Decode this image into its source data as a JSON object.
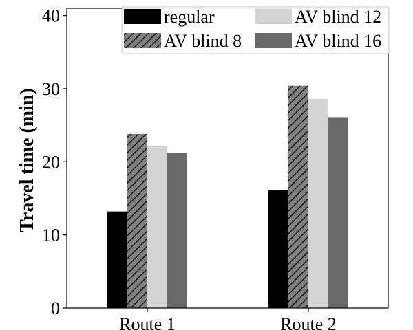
{
  "chart_data": {
    "type": "bar",
    "categories": [
      "Route 1",
      "Route 2"
    ],
    "series": [
      {
        "name": "regular",
        "values": [
          13.2,
          16.1
        ],
        "color": "#000000",
        "pattern": "solid"
      },
      {
        "name": "AV blind 8",
        "values": [
          23.8,
          30.4
        ],
        "color": "#808080",
        "pattern": "hatch"
      },
      {
        "name": "AV blind 12",
        "values": [
          22.1,
          28.6
        ],
        "color": "#d3d3d3",
        "pattern": "solid"
      },
      {
        "name": "AV blind 16",
        "values": [
          21.2,
          26.1
        ],
        "color": "#696969",
        "pattern": "solid"
      }
    ],
    "title": "",
    "xlabel": "",
    "ylabel": "Travel time (min)",
    "ylim": [
      0,
      41
    ],
    "yticks": [
      0,
      10,
      20,
      30,
      40
    ],
    "legend": {
      "placement": "top",
      "columns": 2
    },
    "grid": false
  }
}
